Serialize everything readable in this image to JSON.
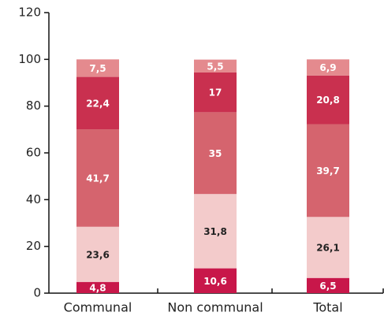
{
  "chart_data": {
    "type": "stacked_bar",
    "categories": [
      "Communal",
      "Non communal",
      "Total"
    ],
    "series": [
      {
        "color": "#c8174a",
        "label_color": "#ffffff",
        "values": [
          4.8,
          10.6,
          6.5
        ],
        "value_labels": [
          "4,8",
          "10,6",
          "6,5"
        ]
      },
      {
        "color": "#f3cbcb",
        "label_color": "#222222",
        "values": [
          23.6,
          31.8,
          26.1
        ],
        "value_labels": [
          "23,6",
          "31,8",
          "26,1"
        ]
      },
      {
        "color": "#d5646e",
        "label_color": "#ffffff",
        "values": [
          41.7,
          35,
          39.7
        ],
        "value_labels": [
          "41,7",
          "35",
          "39,7"
        ]
      },
      {
        "color": "#c9304f",
        "label_color": "#ffffff",
        "values": [
          22.4,
          17,
          20.8
        ],
        "value_labels": [
          "22,4",
          "17",
          "20,8"
        ]
      },
      {
        "color": "#e48a8e",
        "label_color": "#ffffff",
        "values": [
          7.5,
          5.5,
          6.9
        ],
        "value_labels": [
          "7,5",
          "5,5",
          "6,9"
        ]
      }
    ],
    "ylim": [
      0,
      120
    ],
    "yticks": [
      0,
      20,
      40,
      60,
      80,
      100,
      120
    ]
  }
}
